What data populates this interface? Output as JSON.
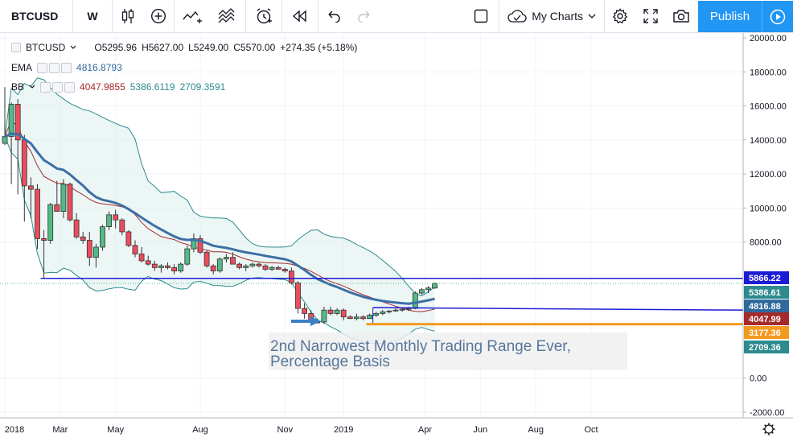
{
  "toolbar": {
    "symbol": "BTCUSD",
    "interval": "W",
    "my_charts_label": "My Charts",
    "publish_label": "Publish"
  },
  "legend": {
    "symbol": "BTCUSD",
    "ohlc": {
      "open_label": "O",
      "open": "5295.96",
      "high_label": "H",
      "high": "5627.00",
      "low_label": "L",
      "low": "5249.00",
      "close_label": "C",
      "close": "5570.00",
      "change": "+274.35 (+5.18%)"
    },
    "ema": {
      "label": "EMA",
      "value": "4816.8793"
    },
    "bb": {
      "label": "BB",
      "basis": "4047.9855",
      "upper": "5386.6119",
      "lower": "2709.3591"
    }
  },
  "annotation": {
    "line1": "2nd Narrowest Monthly Trading Range Ever,",
    "line2": "Percentage Basis"
  },
  "price_tags": [
    {
      "value": 5866.22,
      "label": "5866.22",
      "color": "#1c1cd6"
    },
    {
      "value": 5386.61,
      "label": "5386.61",
      "color": "#2d8a8f"
    },
    {
      "value": 4816.88,
      "label": "4816.88",
      "color": "#2f6a9e"
    },
    {
      "value": 4047.99,
      "label": "4047.99",
      "color": "#a52a2a"
    },
    {
      "value": 3177.36,
      "label": "3177.36",
      "color": "#f29a1f"
    },
    {
      "value": 2709.36,
      "label": "2709.36",
      "color": "#2d8a8f"
    }
  ],
  "chart_data": {
    "type": "candlestick",
    "y_ticks": [
      {
        "value": 20000,
        "label": "20000.00"
      },
      {
        "value": 18000,
        "label": "18000.00"
      },
      {
        "value": 16000,
        "label": "16000.00"
      },
      {
        "value": 14000,
        "label": "14000.00"
      },
      {
        "value": 12000,
        "label": "12000.00"
      },
      {
        "value": 10000,
        "label": "10000.00"
      },
      {
        "value": 8000,
        "label": "8000.00"
      },
      {
        "value": 0,
        "label": "0.00"
      },
      {
        "value": -2000,
        "label": "-2000.00"
      }
    ],
    "ylim": [
      -2000,
      20000
    ],
    "x_ticks": [
      {
        "week": 0,
        "label": "2018"
      },
      {
        "week": 8.5,
        "label": "Mar"
      },
      {
        "week": 17,
        "label": "May"
      },
      {
        "week": 30,
        "label": "Aug"
      },
      {
        "week": 43,
        "label": "Nov"
      },
      {
        "week": 52,
        "label": "2019"
      },
      {
        "week": 64.5,
        "label": "Apr"
      },
      {
        "week": 73,
        "label": "Jun"
      },
      {
        "week": 81.5,
        "label": "Aug"
      },
      {
        "week": 90,
        "label": "Oct"
      }
    ],
    "candles": [
      [
        13800,
        17100,
        13700,
        14200
      ],
      [
        14200,
        16200,
        11400,
        16100
      ],
      [
        16100,
        16400,
        10800,
        14000
      ],
      [
        14000,
        14300,
        9200,
        11300
      ],
      [
        11300,
        11800,
        9400,
        11100
      ],
      [
        11100,
        11400,
        7600,
        8200
      ],
      [
        8200,
        8700,
        5900,
        8100
      ],
      [
        8100,
        10300,
        7900,
        10200
      ],
      [
        10200,
        11600,
        9800,
        9800
      ],
      [
        9800,
        11700,
        9400,
        11400
      ],
      [
        11400,
        11500,
        9200,
        9300
      ],
      [
        9300,
        9700,
        8200,
        8300
      ],
      [
        8300,
        8600,
        7900,
        8100
      ],
      [
        8100,
        8600,
        6600,
        7100
      ],
      [
        7100,
        7900,
        6500,
        7700
      ],
      [
        7700,
        9000,
        7500,
        8900
      ],
      [
        8900,
        9800,
        8700,
        9600
      ],
      [
        9600,
        9900,
        8800,
        9300
      ],
      [
        9300,
        9400,
        8400,
        8600
      ],
      [
        8600,
        8700,
        7700,
        7800
      ],
      [
        7800,
        8100,
        7100,
        7300
      ],
      [
        7300,
        7700,
        6800,
        6900
      ],
      [
        6900,
        7200,
        6600,
        6700
      ],
      [
        6700,
        6900,
        6300,
        6500
      ],
      [
        6500,
        6700,
        6200,
        6600
      ],
      [
        6600,
        6800,
        6400,
        6500
      ],
      [
        6500,
        6700,
        6100,
        6300
      ],
      [
        6300,
        6800,
        6200,
        6700
      ],
      [
        6700,
        7800,
        6600,
        7600
      ],
      [
        7600,
        8500,
        7400,
        8200
      ],
      [
        8200,
        8400,
        7300,
        7400
      ],
      [
        7400,
        7500,
        6500,
        6600
      ],
      [
        6600,
        6700,
        6100,
        6300
      ],
      [
        6300,
        7100,
        6200,
        7000
      ],
      [
        7000,
        7300,
        6800,
        7100
      ],
      [
        7100,
        7400,
        6900,
        6700
      ],
      [
        6700,
        6800,
        6400,
        6500
      ],
      [
        6500,
        6700,
        6300,
        6600
      ],
      [
        6600,
        6800,
        6500,
        6700
      ],
      [
        6700,
        6800,
        6500,
        6600
      ],
      [
        6600,
        6700,
        6300,
        6400
      ],
      [
        6400,
        6600,
        6300,
        6500
      ],
      [
        6500,
        6600,
        6400,
        6400
      ],
      [
        6400,
        6500,
        6200,
        6300
      ],
      [
        6300,
        6500,
        5500,
        5600
      ],
      [
        5600,
        5700,
        3800,
        4100
      ],
      [
        4100,
        4400,
        3500,
        3800
      ],
      [
        3800,
        4000,
        3200,
        3300
      ],
      [
        3300,
        3500,
        3200,
        3300
      ],
      [
        3300,
        4200,
        3200,
        4000
      ],
      [
        4000,
        4200,
        3700,
        3800
      ],
      [
        3800,
        4100,
        3700,
        4000
      ],
      [
        4000,
        4100,
        3400,
        3600
      ],
      [
        3600,
        3700,
        3500,
        3500
      ],
      [
        3500,
        3800,
        3400,
        3600
      ],
      [
        3600,
        3700,
        3400,
        3500
      ],
      [
        3500,
        3800,
        3500,
        3700
      ],
      [
        3700,
        3900,
        3600,
        3800
      ],
      [
        3800,
        4000,
        3700,
        3900
      ],
      [
        3900,
        4000,
        3800,
        3950
      ],
      [
        3950,
        4100,
        3900,
        4000
      ],
      [
        4000,
        4100,
        3900,
        4050
      ],
      [
        4050,
        4200,
        3950,
        4100
      ],
      [
        4100,
        5100,
        4050,
        5000
      ],
      [
        5000,
        5300,
        4900,
        5200
      ],
      [
        5200,
        5400,
        5000,
        5300
      ],
      [
        5296,
        5627,
        5249,
        5570
      ]
    ]
  }
}
